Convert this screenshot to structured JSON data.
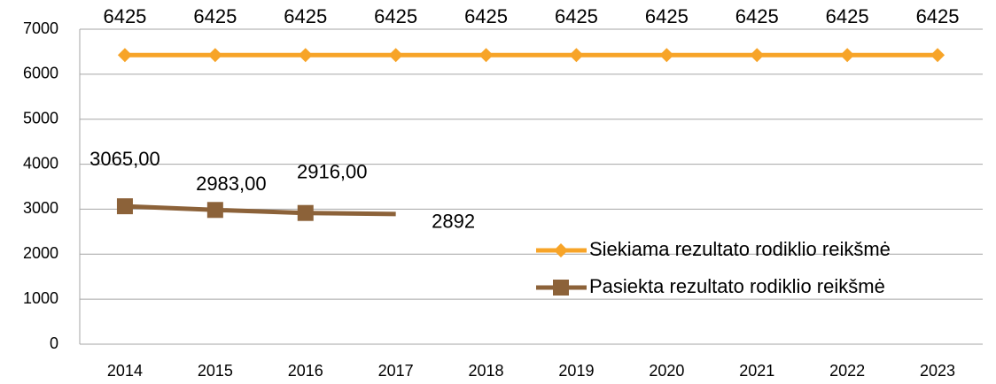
{
  "chart_data": {
    "type": "line",
    "categories": [
      "2014",
      "2015",
      "2016",
      "2017",
      "2018",
      "2019",
      "2020",
      "2021",
      "2022",
      "2023"
    ],
    "series": [
      {
        "name": "Siekiama rezultato rodiklio reikšmė",
        "color": "#f7a428",
        "values": [
          6425,
          6425,
          6425,
          6425,
          6425,
          6425,
          6425,
          6425,
          6425,
          6425
        ]
      },
      {
        "name": "Pasiekta rezultato rodiklio reikšmė",
        "color": "#8c6239",
        "values": [
          3065,
          2983,
          2916,
          2892,
          null,
          null,
          null,
          null,
          null,
          null
        ],
        "value_labels": [
          "3065,00",
          "2983,00",
          "2916,00",
          "2892",
          null,
          null,
          null,
          null,
          null,
          null
        ]
      }
    ],
    "ylim": [
      0,
      7000
    ],
    "yticks": [
      0,
      1000,
      2000,
      3000,
      4000,
      5000,
      6000,
      7000
    ],
    "grid": true,
    "legend": "right"
  }
}
